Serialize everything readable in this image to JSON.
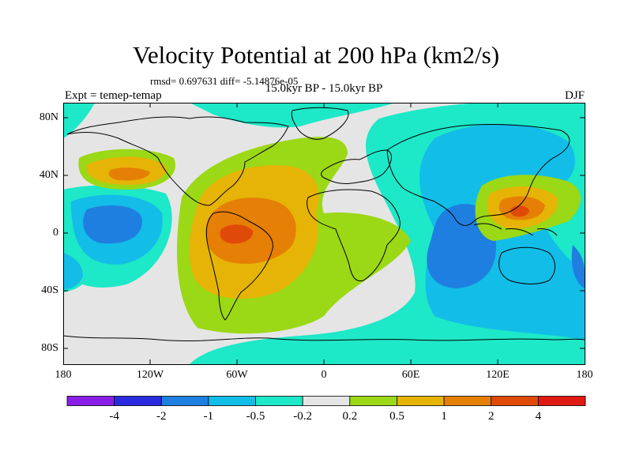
{
  "figure": {
    "title": "Velocity Potential at 200 hPa (km2/s)",
    "stats": "rmsd= 0.697631 diff= -5.14876e-05",
    "experiment": "Expt = temep-temap",
    "period": "15.0kyr BP - 15.0kyr BP",
    "season": "DJF"
  },
  "map": {
    "projection": "cylindrical equidistant",
    "lon_range": [
      -180,
      180
    ],
    "lat_range": [
      -90,
      90
    ],
    "lat_ticks": [
      "80N",
      "40N",
      "0",
      "40S",
      "80S"
    ],
    "lon_ticks": [
      "180",
      "120W",
      "60W",
      "0",
      "60E",
      "120E",
      "180"
    ]
  },
  "colorbar": {
    "colors": [
      "#8a1ee8",
      "#2a2ae0",
      "#1f7fe0",
      "#12bde8",
      "#1de8c8",
      "#e5e5e5",
      "#9bd816",
      "#e5b406",
      "#e57f06",
      "#e04a08",
      "#e01a12"
    ],
    "labels": [
      "-4",
      "-2",
      "-1",
      "-0.5",
      "-0.2",
      "0.2",
      "0.5",
      "1",
      "2",
      "4"
    ]
  }
}
